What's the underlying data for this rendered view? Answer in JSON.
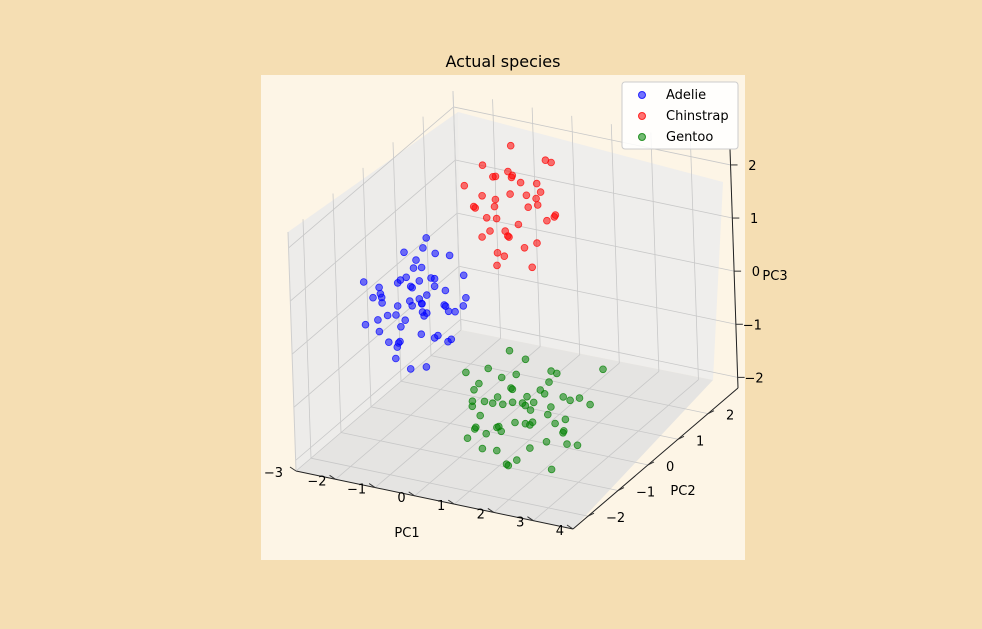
{
  "chart_data": {
    "type": "scatter",
    "projection": "3d",
    "title": "Actual species",
    "xlabel": "PC1",
    "ylabel": "PC2",
    "zlabel": "PC3",
    "xlim": [
      -3,
      4
    ],
    "ylim": [
      -2.5,
      3
    ],
    "zlim": [
      -2.2,
      2.3
    ],
    "xticks": [
      "−3",
      "−2",
      "−1",
      "0",
      "1",
      "2",
      "3",
      "4"
    ],
    "yticks": [
      "−2",
      "−1",
      "0",
      "1",
      "2"
    ],
    "zticks": [
      "−2",
      "−1",
      "0",
      "1",
      "2"
    ],
    "grid": true,
    "legend": "top-right",
    "series": [
      {
        "name": "Adelie",
        "color": "#0000ff",
        "points": [
          [
            -2.0,
            0.1,
            -0.1
          ],
          [
            -1.9,
            -0.2,
            -0.3
          ],
          [
            -2.3,
            0.2,
            0.2
          ],
          [
            -1.8,
            0.4,
            -0.1
          ],
          [
            -2.1,
            -0.5,
            -0.6
          ],
          [
            -2.5,
            0.0,
            -0.4
          ],
          [
            -1.6,
            0.3,
            0.3
          ],
          [
            -1.5,
            -0.2,
            -0.5
          ],
          [
            -2.2,
            0.6,
            0.4
          ],
          [
            -1.7,
            -0.6,
            -0.2
          ],
          [
            -2.4,
            -0.3,
            0.1
          ],
          [
            -1.9,
            0.8,
            0.0
          ],
          [
            -1.4,
            0.1,
            -0.7
          ],
          [
            -2.0,
            -0.8,
            0.3
          ],
          [
            -2.6,
            0.4,
            -0.6
          ],
          [
            -1.3,
            -0.4,
            0.2
          ],
          [
            -1.8,
            0.0,
            0.6
          ],
          [
            -2.2,
            -0.1,
            -0.9
          ],
          [
            -1.6,
            0.7,
            -0.4
          ],
          [
            -2.3,
            0.9,
            0.1
          ],
          [
            -1.1,
            0.2,
            -0.2
          ],
          [
            -2.7,
            -0.2,
            0.0
          ],
          [
            -1.5,
            -0.9,
            -0.3
          ],
          [
            -2.0,
            0.5,
            -0.5
          ],
          [
            -1.7,
            0.2,
            0.9
          ],
          [
            -2.4,
            0.7,
            -0.2
          ],
          [
            -1.2,
            -0.1,
            0.4
          ],
          [
            -1.9,
            -0.4,
            0.5
          ],
          [
            -2.1,
            0.3,
            -0.3
          ],
          [
            -1.4,
            0.5,
            0.0
          ],
          [
            -2.8,
            0.1,
            -0.8
          ],
          [
            -1.0,
            -0.3,
            -0.4
          ],
          [
            -2.2,
            -0.7,
            -0.1
          ],
          [
            -1.6,
            -0.5,
            0.7
          ],
          [
            -2.5,
            0.6,
            0.5
          ],
          [
            -1.8,
            1.0,
            -0.6
          ],
          [
            -1.3,
            0.4,
            -0.9
          ],
          [
            -2.0,
            -0.3,
            0.0
          ],
          [
            -1.7,
            0.1,
            -0.1
          ],
          [
            -2.3,
            -0.5,
            0.4
          ],
          [
            -0.9,
            0.0,
            -0.6
          ],
          [
            -1.5,
            0.8,
            0.5
          ],
          [
            -2.6,
            -0.6,
            -0.3
          ],
          [
            -1.9,
            0.3,
            0.2
          ],
          [
            -1.1,
            -0.6,
            0.1
          ],
          [
            -2.1,
            1.1,
            0.3
          ],
          [
            -1.4,
            -0.2,
            -1.1
          ],
          [
            -2.9,
            0.3,
            -0.2
          ],
          [
            -1.6,
            -0.1,
            0.1
          ],
          [
            -2.0,
            0.7,
            0.8
          ],
          [
            -0.8,
            0.3,
            -0.1
          ],
          [
            -1.2,
            0.9,
            -0.3
          ],
          [
            -2.4,
            0.2,
            -1.0
          ],
          [
            -1.7,
            -0.8,
            -0.7
          ],
          [
            -1.0,
            0.6,
            0.3
          ],
          [
            -2.2,
            0.4,
            0.0
          ],
          [
            -1.5,
            0.0,
            -0.2
          ],
          [
            -3.0,
            -0.1,
            0.2
          ],
          [
            -1.8,
            -0.2,
            -1.2
          ],
          [
            -0.7,
            -0.1,
            0.0
          ]
        ]
      },
      {
        "name": "Chinstrap",
        "color": "#ff0000",
        "points": [
          [
            -0.6,
            0.9,
            1.3
          ],
          [
            -0.3,
            1.3,
            1.6
          ],
          [
            -0.9,
            1.6,
            0.9
          ],
          [
            -0.5,
            1.1,
            2.0
          ],
          [
            0.0,
            1.8,
            1.2
          ],
          [
            -0.2,
            0.7,
            0.8
          ],
          [
            -0.8,
            1.4,
            1.8
          ],
          [
            0.2,
            1.5,
            1.5
          ],
          [
            -0.4,
            2.0,
            1.0
          ],
          [
            -1.0,
            1.0,
            1.4
          ],
          [
            0.1,
            1.2,
            0.7
          ],
          [
            -0.7,
            1.9,
            1.6
          ],
          [
            -0.1,
            1.0,
            2.2
          ],
          [
            0.3,
            1.7,
            1.0
          ],
          [
            -0.5,
            0.6,
            1.1
          ],
          [
            -1.2,
            1.3,
            1.2
          ],
          [
            0.0,
            2.1,
            1.9
          ],
          [
            -0.3,
            0.8,
            0.5
          ],
          [
            0.4,
            1.4,
            1.7
          ],
          [
            -0.6,
            1.6,
            0.6
          ],
          [
            -0.9,
            1.2,
            2.1
          ],
          [
            0.2,
            0.9,
            1.3
          ],
          [
            -0.4,
            1.5,
            2.4
          ],
          [
            -1.1,
            1.8,
            1.0
          ],
          [
            0.5,
            1.1,
            0.9
          ],
          [
            -0.2,
            1.7,
            1.4
          ],
          [
            -0.7,
            0.9,
            1.7
          ],
          [
            0.1,
            2.2,
            0.8
          ],
          [
            -0.5,
            1.3,
            0.4
          ],
          [
            -0.8,
            2.0,
            1.5
          ],
          [
            0.3,
            1.9,
            2.0
          ],
          [
            -0.3,
            1.1,
            1.0
          ],
          [
            -1.0,
            1.5,
            0.7
          ],
          [
            0.6,
            1.6,
            1.2
          ],
          [
            -0.1,
            1.4,
            1.8
          ],
          [
            -0.6,
            1.2,
            1.5
          ],
          [
            0.0,
            0.8,
            1.1
          ],
          [
            -0.4,
            2.3,
            1.3
          ],
          [
            -1.3,
            1.1,
            1.7
          ],
          [
            0.2,
            1.3,
            0.3
          ]
        ]
      },
      {
        "name": "Gentoo",
        "color": "#008000",
        "points": [
          [
            0.8,
            -1.0,
            -0.4
          ],
          [
            1.2,
            -1.4,
            -0.8
          ],
          [
            1.6,
            -0.8,
            -0.2
          ],
          [
            1.0,
            -1.8,
            -0.6
          ],
          [
            2.0,
            -1.2,
            -0.9
          ],
          [
            1.4,
            -0.6,
            -1.2
          ],
          [
            2.4,
            -1.6,
            -0.5
          ],
          [
            0.6,
            -1.3,
            -1.0
          ],
          [
            1.8,
            -2.0,
            -0.3
          ],
          [
            2.2,
            -0.9,
            -1.1
          ],
          [
            1.1,
            -1.1,
            -1.4
          ],
          [
            2.6,
            -1.3,
            -0.7
          ],
          [
            1.5,
            -1.7,
            -1.5
          ],
          [
            0.9,
            -0.7,
            -0.7
          ],
          [
            1.9,
            -1.5,
            -0.1
          ],
          [
            2.8,
            -1.1,
            -1.0
          ],
          [
            1.3,
            -2.1,
            -0.9
          ],
          [
            2.1,
            -0.7,
            -0.6
          ],
          [
            0.7,
            -1.6,
            -0.2
          ],
          [
            1.7,
            -1.0,
            -1.3
          ],
          [
            2.5,
            -1.9,
            -1.2
          ],
          [
            1.0,
            -0.9,
            -1.6
          ],
          [
            3.0,
            -1.4,
            -0.4
          ],
          [
            1.6,
            -1.3,
            -0.5
          ],
          [
            2.3,
            -1.1,
            -1.5
          ],
          [
            0.5,
            -1.1,
            -0.8
          ],
          [
            1.4,
            -1.9,
            -1.1
          ],
          [
            2.7,
            -0.8,
            -0.8
          ],
          [
            1.2,
            -0.8,
            -0.1
          ],
          [
            2.0,
            -1.7,
            -1.6
          ],
          [
            3.2,
            -1.7,
            -0.9
          ],
          [
            1.8,
            -1.2,
            -0.8
          ],
          [
            0.8,
            -1.5,
            -1.3
          ],
          [
            2.4,
            -1.0,
            -0.2
          ],
          [
            1.5,
            -2.2,
            -0.6
          ],
          [
            2.9,
            -1.2,
            -1.4
          ],
          [
            1.1,
            -1.7,
            -0.3
          ],
          [
            2.2,
            -1.4,
            -1.0
          ],
          [
            1.9,
            -0.6,
            -0.9
          ],
          [
            3.4,
            -1.5,
            -1.2
          ],
          [
            0.6,
            -0.9,
            -1.1
          ],
          [
            1.3,
            -1.2,
            -0.9
          ],
          [
            2.6,
            -2.0,
            -0.7
          ],
          [
            1.7,
            -1.6,
            -1.8
          ],
          [
            2.1,
            -1.9,
            -0.4
          ],
          [
            3.1,
            -1.0,
            -0.6
          ],
          [
            1.0,
            -2.0,
            -1.2
          ],
          [
            2.5,
            -1.5,
            -0.3
          ],
          [
            1.4,
            -1.0,
            -0.7
          ],
          [
            3.6,
            -1.3,
            -0.5
          ],
          [
            0.9,
            -1.4,
            -1.7
          ],
          [
            2.3,
            -0.8,
            -1.3
          ],
          [
            1.6,
            -1.8,
            -1.0
          ],
          [
            2.8,
            -1.6,
            -1.7
          ],
          [
            1.2,
            -0.7,
            -1.5
          ],
          [
            3.3,
            -1.8,
            -0.8
          ],
          [
            2.0,
            -1.3,
            -0.6
          ],
          [
            1.5,
            -1.4,
            -1.9
          ],
          [
            3.8,
            -1.1,
            0.1
          ],
          [
            2.7,
            -1.2,
            -0.1
          ]
        ]
      }
    ]
  }
}
